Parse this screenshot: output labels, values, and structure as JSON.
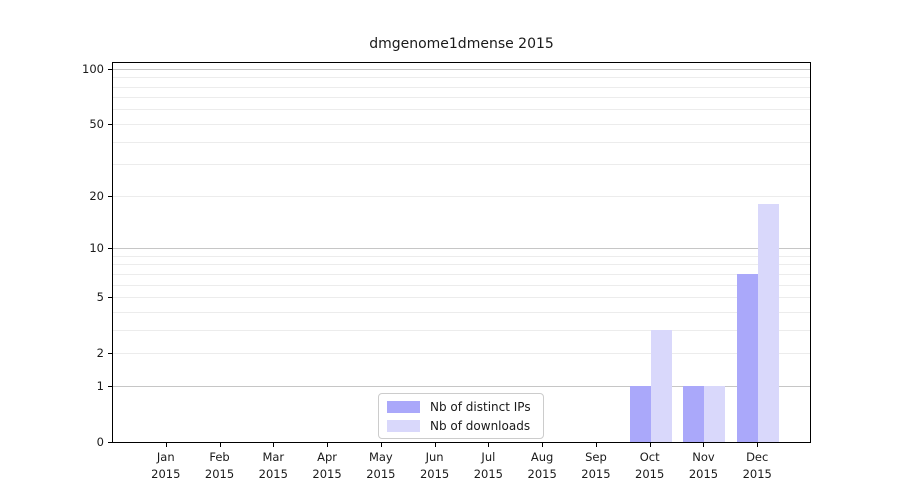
{
  "chart_data": {
    "type": "bar",
    "title": "dmgenome1dmense 2015",
    "categories": [
      "Jan",
      "Feb",
      "Mar",
      "Apr",
      "May",
      "Jun",
      "Jul",
      "Aug",
      "Sep",
      "Oct",
      "Nov",
      "Dec"
    ],
    "x_year": "2015",
    "series": [
      {
        "name": "Nb of distinct IPs",
        "color": "#aaa8fa",
        "values": [
          0,
          0,
          0,
          0,
          0,
          0,
          0,
          0,
          0,
          1,
          1,
          7
        ]
      },
      {
        "name": "Nb of downloads",
        "color": "#d9d8fb",
        "values": [
          0,
          0,
          0,
          0,
          0,
          0,
          0,
          0,
          0,
          3,
          1,
          18
        ]
      }
    ],
    "yscale": "log1p",
    "ylim": [
      0,
      110
    ],
    "y_ticks": [
      0,
      1,
      2,
      5,
      10,
      20,
      50,
      100
    ],
    "grid_major": [
      1,
      10,
      100
    ],
    "grid_minor": [
      2,
      3,
      4,
      5,
      6,
      7,
      8,
      9,
      20,
      30,
      40,
      50,
      60,
      70,
      80,
      90
    ],
    "legend_position": "lower center",
    "colors": {
      "spine": "#000000",
      "grid_major": "#c6c6c6",
      "grid_minor": "#ececec",
      "text": "#1a1a1a",
      "background": "#ffffff"
    }
  }
}
